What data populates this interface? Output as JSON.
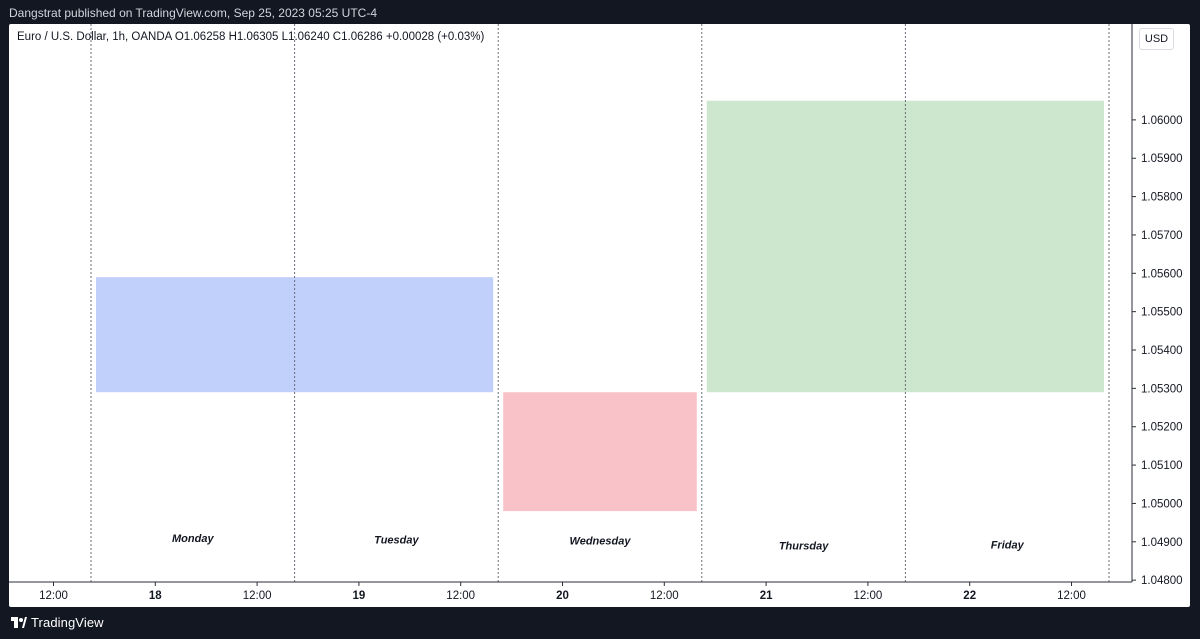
{
  "header": {
    "attribution": "Dangstrat published on TradingView.com, Sep 25, 2023 05:25 UTC-4"
  },
  "legend": {
    "text": "Euro / U.S. Dollar, 1h, OANDA  O1.06258  H1.06305  L1.06240  C1.06286  +0.00028 (+0.03%)"
  },
  "currency_label": "USD",
  "footer": {
    "brand": "TradingView"
  },
  "chart_data": {
    "type": "area",
    "title": "",
    "x_ticks": [
      "12:00",
      "18",
      "12:00",
      "19",
      "12:00",
      "20",
      "12:00",
      "21",
      "12:00",
      "22",
      "12:00"
    ],
    "y_ticks": [
      "1.06000",
      "1.05900",
      "1.05800",
      "1.05700",
      "1.05600",
      "1.05500",
      "1.05400",
      "1.05300",
      "1.05200",
      "1.05100",
      "1.05000",
      "1.04900",
      "1.04800"
    ],
    "ylim": [
      1.0473,
      1.0625
    ],
    "grid": false,
    "day_separators": [
      "18",
      "19",
      "20",
      "21",
      "22",
      "23"
    ],
    "zones": [
      {
        "label": "Monday",
        "start_day": "18",
        "end_day": "20",
        "low": 1.0529,
        "high": 1.0559,
        "color": "#c1d0fb",
        "label_price": 1.049
      },
      {
        "label": "Tuesday",
        "start_day": "18",
        "end_day": "20",
        "low": 1.0529,
        "high": 1.0559,
        "color": "#c1d0fb",
        "label_price": 1.04895
      },
      {
        "label": "Wednesday",
        "start_day": "20",
        "end_day": "21",
        "low": 1.0498,
        "high": 1.0529,
        "color": "#f8c2c8",
        "label_price": 1.04893
      },
      {
        "label": "Thursday",
        "start_day": "21",
        "end_day": "23",
        "low": 1.0529,
        "high": 1.0605,
        "color": "#cce7cd",
        "label_price": 1.0488
      },
      {
        "label": "Friday",
        "start_day": "21",
        "end_day": "23",
        "low": 1.0529,
        "high": 1.0605,
        "color": "#cce7cd",
        "label_price": 1.04882
      }
    ]
  }
}
